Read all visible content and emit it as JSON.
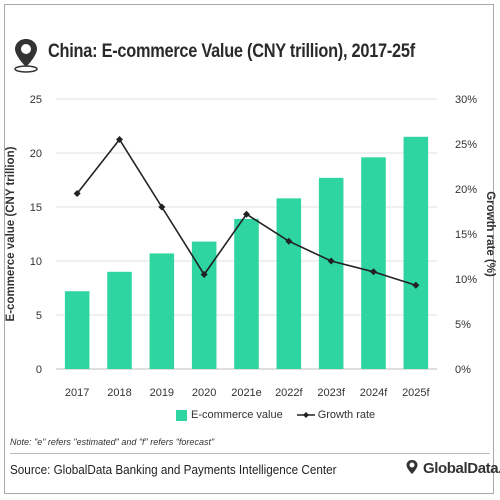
{
  "title": "China: E-commerce Value (CNY trillion), 2017-25f",
  "note": "Note: \"e\" refers \"estimated\" and \"f\" refers \"forecast\"",
  "source": "Source: GlobalData Banking and Payments Intelligence Center",
  "brand": "GlobalData.",
  "colors": {
    "bar": "#2ed5a0",
    "line": "#222222",
    "grid": "#e2e2e2",
    "text": "#333333",
    "icon": "#333333"
  },
  "icon": "globe-location-pin-icon",
  "chart_data": {
    "type": "bar",
    "categories": [
      "2017",
      "2018",
      "2019",
      "2020",
      "2021e",
      "2022f",
      "2023f",
      "2024f",
      "2025f"
    ],
    "series": [
      {
        "name": "E-commerce value",
        "type": "bar",
        "axis": "left",
        "values": [
          7.2,
          9.0,
          10.7,
          11.8,
          13.9,
          15.8,
          17.7,
          19.6,
          21.5
        ]
      },
      {
        "name": "Growth rate",
        "type": "line",
        "axis": "right",
        "values": [
          19.5,
          25.5,
          18.0,
          10.5,
          17.2,
          14.2,
          12.0,
          10.8,
          9.3
        ]
      }
    ],
    "ylabel": "E-commerce value (CNY trillion)",
    "y2label": "Growth rate (%)",
    "ylim": [
      0,
      25
    ],
    "y2lim": [
      0,
      30
    ],
    "yticks": [
      "0",
      "5",
      "10",
      "15",
      "20",
      "25"
    ],
    "y2ticks": [
      "0%",
      "5%",
      "10%",
      "15%",
      "20%",
      "25%",
      "30%"
    ],
    "grid": true,
    "legend_position": "bottom"
  }
}
